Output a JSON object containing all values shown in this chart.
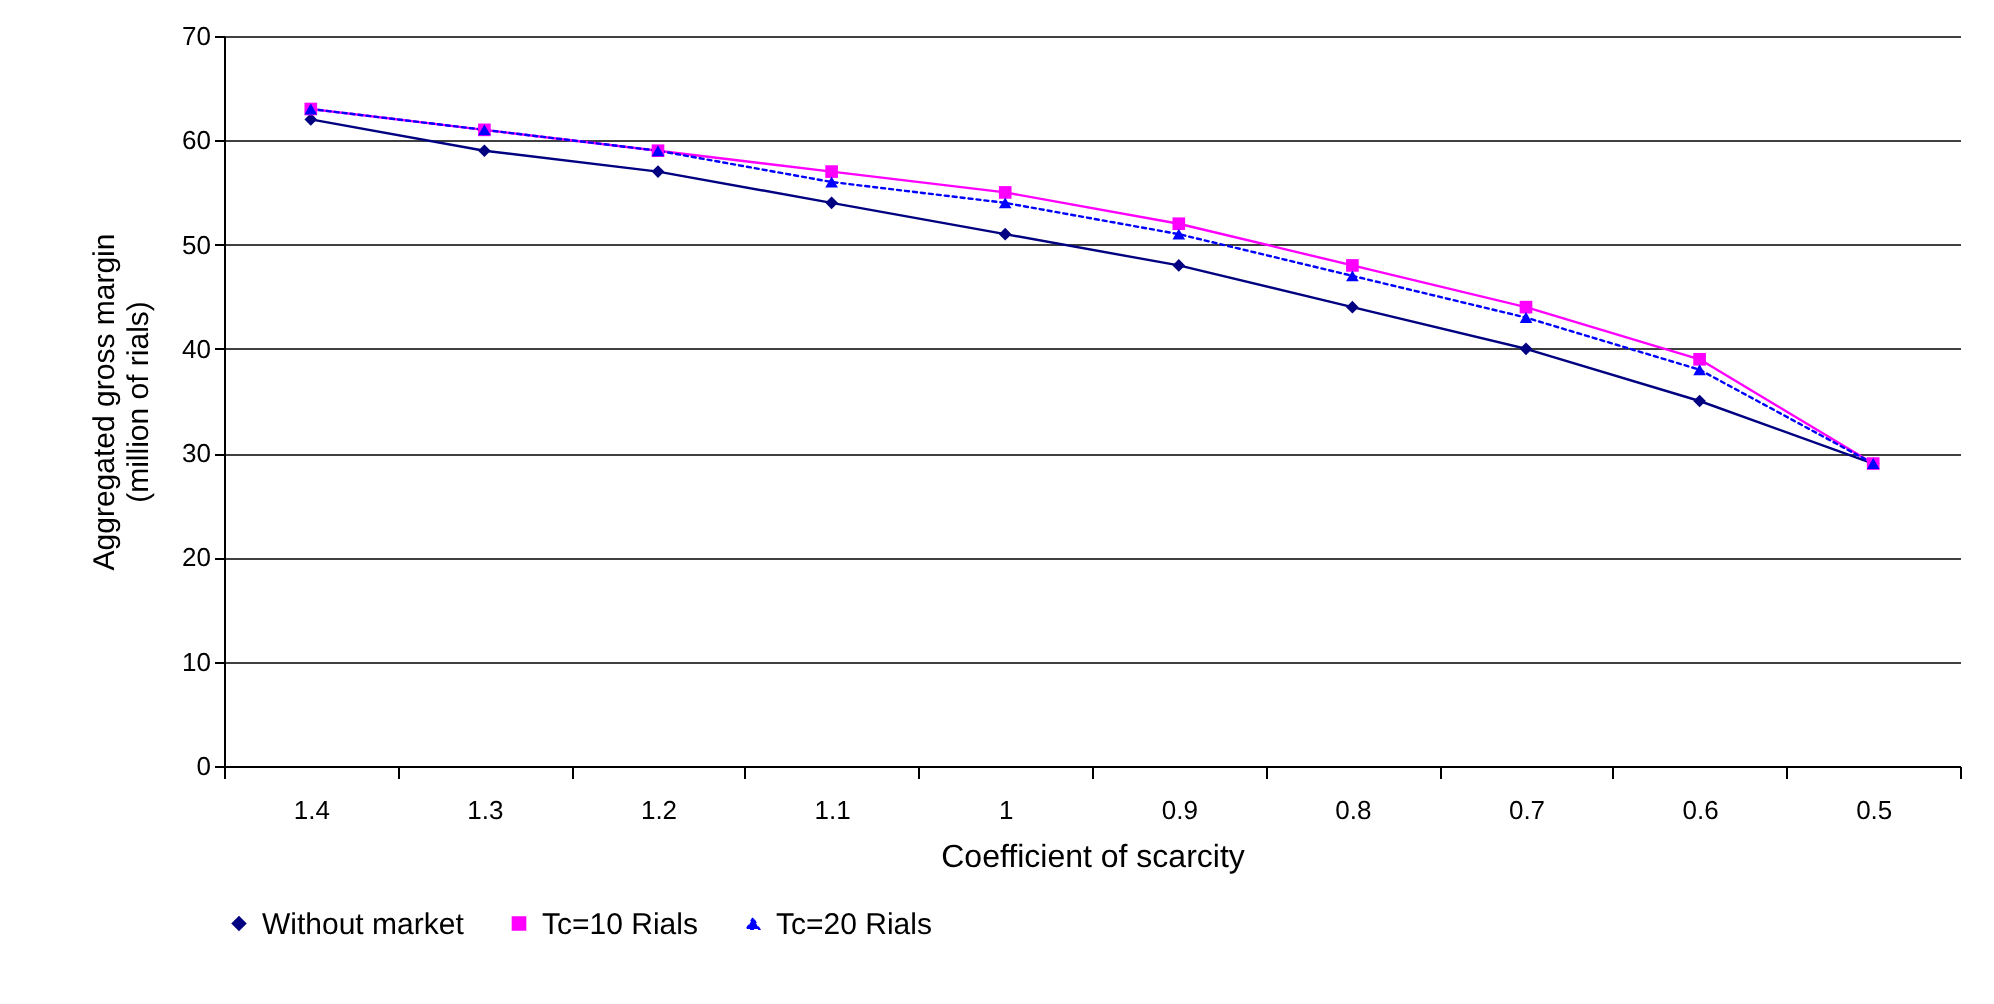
{
  "chart_data": {
    "type": "line",
    "xlabel": "Coefficient of scarcity",
    "ylabel": "Aggregated gross margin\n(million of rials)",
    "categories": [
      "1.4",
      "1.3",
      "1.2",
      "1.1",
      "1",
      "0.9",
      "0.8",
      "0.7",
      "0.6",
      "0.5"
    ],
    "series": [
      {
        "name": "Without market",
        "color": "#000080",
        "marker": "diamond",
        "line_style": "solid",
        "values": [
          62,
          59,
          57,
          54,
          51,
          48,
          44,
          40,
          35,
          29
        ]
      },
      {
        "name": "Tc=10 Rials",
        "color": "#ff00ff",
        "marker": "square",
        "line_style": "solid",
        "values": [
          63,
          61,
          59,
          57,
          55,
          52,
          48,
          44,
          39,
          29
        ]
      },
      {
        "name": "Tc=20 Rials",
        "color": "#0000ff",
        "marker": "triangle",
        "line_style": "dotted",
        "values": [
          63,
          61,
          59,
          56,
          54,
          51,
          47,
          43,
          38,
          29
        ]
      }
    ],
    "ylim": [
      0,
      70
    ],
    "yticks": [
      0,
      10,
      20,
      30,
      40,
      50,
      60,
      70
    ],
    "grid": "y",
    "legend": "bottom"
  }
}
